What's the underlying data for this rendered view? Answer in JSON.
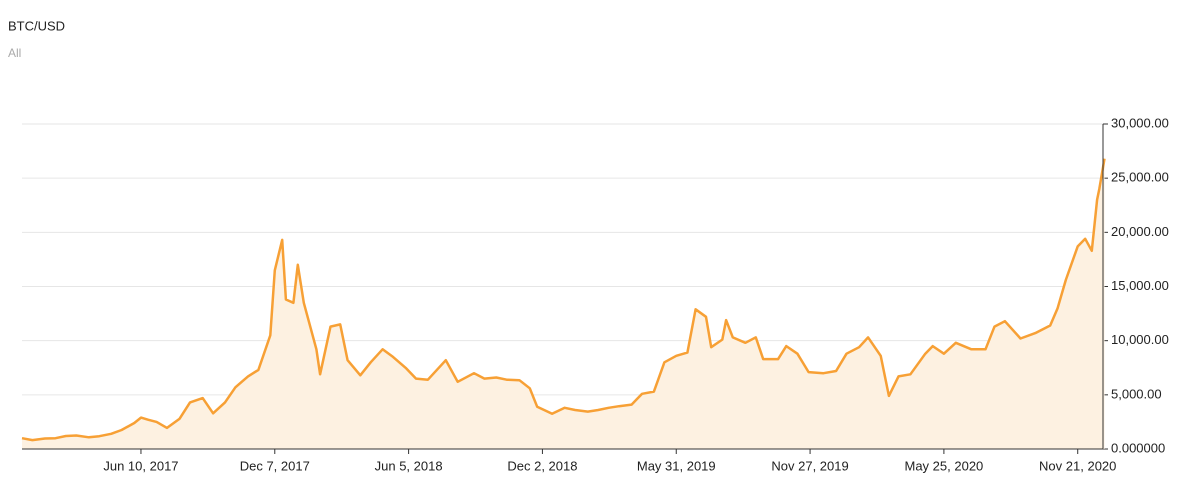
{
  "chart_data": {
    "type": "area",
    "title": "BTC/USD",
    "subtitle": "All",
    "x": [
      "2017-01-01",
      "2017-01-15",
      "2017-02-01",
      "2017-02-15",
      "2017-03-01",
      "2017-03-15",
      "2017-04-01",
      "2017-04-15",
      "2017-05-01",
      "2017-05-15",
      "2017-06-01",
      "2017-06-10",
      "2017-06-20",
      "2017-07-01",
      "2017-07-15",
      "2017-08-01",
      "2017-08-15",
      "2017-09-01",
      "2017-09-15",
      "2017-10-01",
      "2017-10-15",
      "2017-11-01",
      "2017-11-15",
      "2017-12-01",
      "2017-12-07",
      "2017-12-17",
      "2017-12-22",
      "2018-01-01",
      "2018-01-07",
      "2018-01-15",
      "2018-02-01",
      "2018-02-06",
      "2018-02-20",
      "2018-03-05",
      "2018-03-15",
      "2018-04-01",
      "2018-04-15",
      "2018-05-01",
      "2018-05-15",
      "2018-06-01",
      "2018-06-15",
      "2018-07-01",
      "2018-07-25",
      "2018-08-10",
      "2018-09-01",
      "2018-09-15",
      "2018-10-01",
      "2018-10-15",
      "2018-11-01",
      "2018-11-15",
      "2018-11-25",
      "2018-12-15",
      "2019-01-01",
      "2019-01-15",
      "2019-02-01",
      "2019-02-15",
      "2019-03-01",
      "2019-03-15",
      "2019-04-01",
      "2019-04-15",
      "2019-05-01",
      "2019-05-15",
      "2019-05-31",
      "2019-06-15",
      "2019-06-26",
      "2019-07-10",
      "2019-07-17",
      "2019-08-01",
      "2019-08-06",
      "2019-08-15",
      "2019-09-01",
      "2019-09-15",
      "2019-09-25",
      "2019-10-15",
      "2019-10-26",
      "2019-11-10",
      "2019-11-25",
      "2019-12-15",
      "2020-01-01",
      "2020-01-15",
      "2020-02-01",
      "2020-02-13",
      "2020-03-01",
      "2020-03-12",
      "2020-03-25",
      "2020-04-10",
      "2020-04-30",
      "2020-05-10",
      "2020-05-25",
      "2020-06-10",
      "2020-07-01",
      "2020-07-20",
      "2020-08-01",
      "2020-08-15",
      "2020-09-05",
      "2020-09-25",
      "2020-10-15",
      "2020-10-25",
      "2020-11-05",
      "2020-11-21",
      "2020-12-01",
      "2020-12-10",
      "2020-12-17",
      "2020-12-20",
      "2020-12-27"
    ],
    "series": [
      {
        "name": "BTC/USD",
        "color": "#f7a035",
        "values": [
          1000,
          820,
          970,
          1000,
          1200,
          1250,
          1080,
          1180,
          1400,
          1750,
          2400,
          2900,
          2700,
          2500,
          1950,
          2800,
          4300,
          4700,
          3300,
          4300,
          5700,
          6700,
          7300,
          10500,
          16500,
          19300,
          13800,
          13500,
          17000,
          13500,
          9200,
          6900,
          11300,
          11500,
          8200,
          6800,
          8000,
          9200,
          8500,
          7500,
          6500,
          6400,
          8200,
          6200,
          7000,
          6500,
          6600,
          6400,
          6350,
          5600,
          3900,
          3250,
          3800,
          3600,
          3450,
          3600,
          3800,
          3950,
          4100,
          5100,
          5300,
          8000,
          8600,
          8900,
          12900,
          12200,
          9400,
          10100,
          11900,
          10300,
          9800,
          10300,
          8300,
          8300,
          9500,
          8800,
          7100,
          7000,
          7200,
          8800,
          9400,
          10300,
          8600,
          4900,
          6700,
          6900,
          8800,
          9500,
          8800,
          9800,
          9200,
          9200,
          11300,
          11800,
          10200,
          10700,
          11400,
          13000,
          15600,
          18700,
          19400,
          18300,
          23000,
          24000,
          26800
        ]
      }
    ],
    "xlim": [
      "2017-01-01",
      "2020-12-25"
    ],
    "xticks": [
      {
        "value": "2017-06-10",
        "label": "Jun 10, 2017"
      },
      {
        "value": "2017-12-07",
        "label": "Dec 7, 2017"
      },
      {
        "value": "2018-06-05",
        "label": "Jun 5, 2018"
      },
      {
        "value": "2018-12-02",
        "label": "Dec 2, 2018"
      },
      {
        "value": "2019-05-31",
        "label": "May 31, 2019"
      },
      {
        "value": "2019-11-27",
        "label": "Nov 27, 2019"
      },
      {
        "value": "2020-05-25",
        "label": "May 25, 2020"
      },
      {
        "value": "2020-11-21",
        "label": "Nov 21, 2020"
      }
    ],
    "ylim": [
      0,
      30000
    ],
    "yticks": [
      {
        "value": 0,
        "label": "0.000000"
      },
      {
        "value": 5000,
        "label": "5,000.00"
      },
      {
        "value": 10000,
        "label": "10,000.00"
      },
      {
        "value": 15000,
        "label": "15,000.00"
      },
      {
        "value": 20000,
        "label": "20,000.00"
      },
      {
        "value": 25000,
        "label": "25,000.00"
      },
      {
        "value": 30000,
        "label": "30,000.00"
      }
    ],
    "grid": true,
    "fill_color": "#fdf1e1"
  }
}
